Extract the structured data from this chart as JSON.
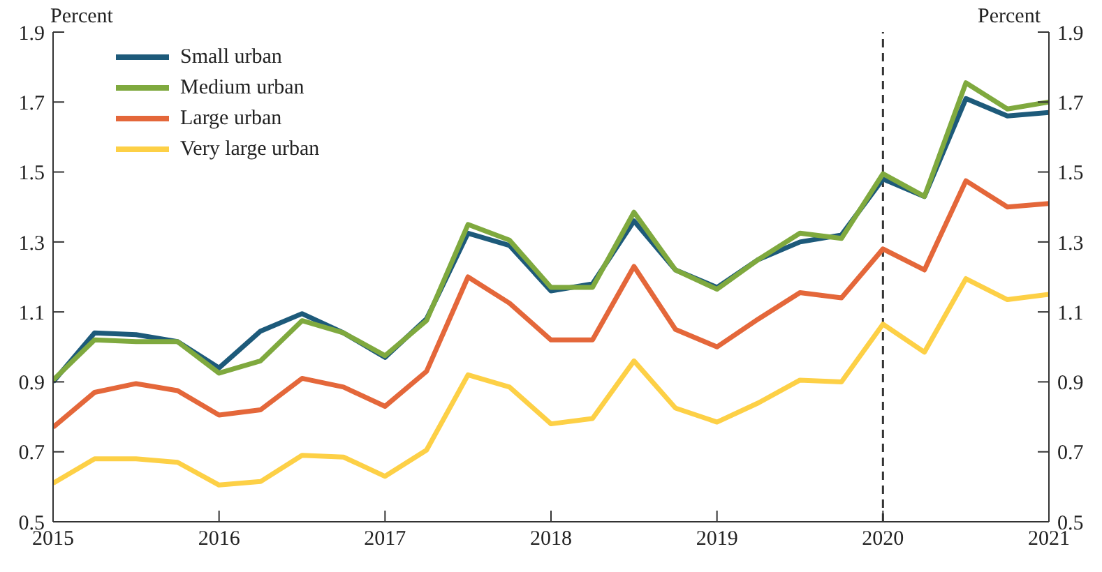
{
  "chart_data": {
    "type": "line",
    "ylabel": "Percent",
    "y2label": "Percent",
    "x": [
      2015,
      2015.25,
      2015.5,
      2015.75,
      2016,
      2016.25,
      2016.5,
      2016.75,
      2017,
      2017.25,
      2017.5,
      2017.75,
      2018,
      2018.25,
      2018.5,
      2018.75,
      2019,
      2019.25,
      2019.5,
      2019.75,
      2020,
      2020.25,
      2020.5,
      2020.75,
      2021
    ],
    "series": [
      {
        "name": "Small urban",
        "color": "#1d5a7a",
        "values": [
          0.9,
          1.04,
          1.035,
          1.015,
          0.94,
          1.045,
          1.095,
          1.04,
          0.97,
          1.08,
          1.325,
          1.29,
          1.16,
          1.18,
          1.36,
          1.22,
          1.17,
          1.25,
          1.3,
          1.32,
          1.48,
          1.43,
          1.71,
          1.66,
          1.67
        ]
      },
      {
        "name": "Medium urban",
        "color": "#7fa93e",
        "values": [
          0.905,
          1.02,
          1.015,
          1.015,
          0.925,
          0.96,
          1.075,
          1.04,
          0.975,
          1.075,
          1.35,
          1.305,
          1.17,
          1.17,
          1.385,
          1.22,
          1.165,
          1.25,
          1.325,
          1.31,
          1.495,
          1.43,
          1.755,
          1.68,
          1.7
        ]
      },
      {
        "name": "Large urban",
        "color": "#e4673a",
        "values": [
          0.77,
          0.87,
          0.895,
          0.875,
          0.805,
          0.82,
          0.91,
          0.885,
          0.83,
          0.93,
          1.2,
          1.125,
          1.02,
          1.02,
          1.23,
          1.05,
          1.0,
          1.08,
          1.155,
          1.14,
          1.28,
          1.22,
          1.475,
          1.4,
          1.41
        ]
      },
      {
        "name": "Very large urban",
        "color": "#fdd046",
        "values": [
          0.61,
          0.68,
          0.68,
          0.67,
          0.605,
          0.615,
          0.69,
          0.685,
          0.63,
          0.705,
          0.92,
          0.885,
          0.78,
          0.795,
          0.96,
          0.825,
          0.785,
          0.84,
          0.905,
          0.9,
          1.065,
          0.985,
          1.195,
          1.135,
          1.15
        ]
      }
    ],
    "xlim": [
      2015,
      2021
    ],
    "xticks": [
      2015,
      2016,
      2017,
      2018,
      2019,
      2020,
      2021
    ],
    "ylim": [
      0.5,
      1.9
    ],
    "yticks": [
      0.5,
      0.7,
      0.9,
      1.1,
      1.3,
      1.5,
      1.7,
      1.9
    ],
    "y2lim": [
      0.5,
      1.9
    ],
    "y2ticks": [
      0.5,
      0.7,
      0.9,
      1.1,
      1.3,
      1.5,
      1.7,
      1.9
    ],
    "ref_lines": [
      {
        "axis": "x",
        "value": 2020,
        "color": "#333333",
        "line_style": "dashed"
      }
    ],
    "grid": false,
    "legend": "top left",
    "marker": "none",
    "line_style": "solid"
  }
}
